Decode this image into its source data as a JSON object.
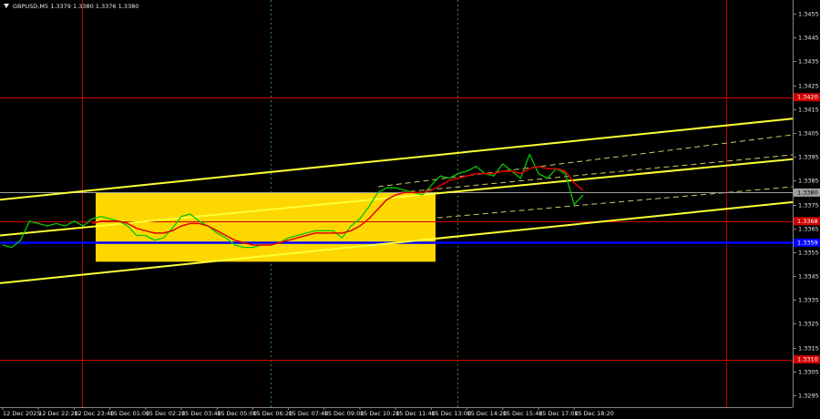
{
  "chart_data": {
    "type": "line",
    "title": "GBPUSD,M5  1.3379 1.3380 1.3376 1.3380",
    "categories": [
      "12 Dec 2025",
      null,
      null,
      null,
      "12 Dec 22:20",
      null,
      null,
      null,
      "12 Dec 23:40",
      null,
      null,
      null,
      "15 Dec 01:00",
      null,
      null,
      null,
      "15 Dec 02:20",
      null,
      null,
      null,
      "15 Dec 03:40",
      null,
      null,
      null,
      "15 Dec 05:00",
      null,
      null,
      null,
      "15 Dec 06:20",
      null,
      null,
      null,
      "15 Dec 07:40",
      null,
      null,
      null,
      "15 Dec 09:00",
      null,
      null,
      null,
      "15 Dec 10:20",
      null,
      null,
      null,
      "15 Dec 11:40",
      null,
      null,
      null,
      "15 Dec 13:00",
      null,
      null,
      null,
      "15 Dec 14:20",
      null,
      null,
      null,
      "15 Dec 15:40",
      null,
      null,
      null,
      "15 Dec 17:00",
      null,
      null,
      null,
      "15 Dec 18:20",
      null
    ],
    "series": [
      {
        "color": "#00c800",
        "values": [
          1.3358,
          1.3357,
          1.336,
          1.3368,
          1.3367,
          1.3366,
          1.3367,
          1.3366,
          1.3368,
          1.3366,
          1.3369,
          1.337,
          1.3369,
          1.3368,
          1.3366,
          1.3362,
          1.3362,
          1.336,
          1.3361,
          1.3365,
          1.337,
          1.3371,
          1.3368,
          1.3366,
          1.3363,
          1.3361,
          1.3358,
          1.3357,
          1.3357,
          1.3358,
          1.3358,
          1.3359,
          1.3361,
          1.3362,
          1.3363,
          1.3364,
          1.3364,
          1.3364,
          1.3361,
          1.3366,
          1.3369,
          1.3374,
          1.338,
          1.3382,
          1.3382,
          1.3381,
          1.338,
          1.3379,
          1.3383,
          1.3387,
          1.3386,
          1.3388,
          1.3389,
          1.3391,
          1.3388,
          1.3387,
          1.3392,
          1.3389,
          1.3386,
          1.3396,
          1.3388,
          1.3386,
          1.339,
          1.3388,
          1.3375,
          1.3379
        ]
      },
      {
        "color": "#e00000",
        "values": [
          null,
          null,
          null,
          null,
          null,
          null,
          null,
          null,
          null,
          null,
          1.3367,
          1.3368,
          1.3368,
          1.3368,
          1.3367,
          1.3365,
          1.3364,
          1.3363,
          1.3363,
          1.3364,
          1.3366,
          1.3367,
          1.3367,
          1.3366,
          1.3364,
          1.3362,
          1.336,
          1.3359,
          1.3358,
          1.3358,
          1.3358,
          1.3359,
          1.336,
          1.3361,
          1.3362,
          1.3363,
          1.3363,
          1.3363,
          1.3363,
          1.3364,
          1.3366,
          1.3369,
          1.3373,
          1.3377,
          1.3379,
          1.338,
          1.338,
          1.338,
          1.3381,
          1.3383,
          1.3385,
          1.3386,
          1.3387,
          1.3388,
          1.3388,
          1.3388,
          1.3389,
          1.3389,
          1.3388,
          1.339,
          1.3391,
          1.339,
          1.339,
          1.3389,
          1.3384,
          1.3381
        ]
      }
    ],
    "ylim": [
      1.329,
      1.346
    ],
    "yticks": [
      1.3455,
      1.3445,
      1.3435,
      1.3425,
      1.3415,
      1.3405,
      1.3395,
      1.3385,
      1.3375,
      1.3365,
      1.3355,
      1.3345,
      1.3335,
      1.3325,
      1.3315,
      1.3305,
      1.3295
    ],
    "levels": [
      {
        "value": 1.342,
        "label": "1.3420",
        "color": "#d00000"
      },
      {
        "value": 1.338,
        "label": "1.3380",
        "color": "#a0a0a0"
      },
      {
        "value": 1.3368,
        "label": "1.3368",
        "color": "#d00000"
      },
      {
        "value": 1.3359,
        "label": "1.3359",
        "color": "#0000ff"
      },
      {
        "value": 1.331,
        "label": "1.3310",
        "color": "#d00000"
      }
    ],
    "zone": {
      "high": 1.338,
      "low": 1.3351,
      "color": "#ffd700"
    },
    "channel": {
      "color": "#ffff33",
      "lines": [
        [
          1.3377,
          1.3411
        ],
        [
          1.3362,
          1.3394
        ],
        [
          1.3342,
          1.3376
        ]
      ]
    }
  }
}
